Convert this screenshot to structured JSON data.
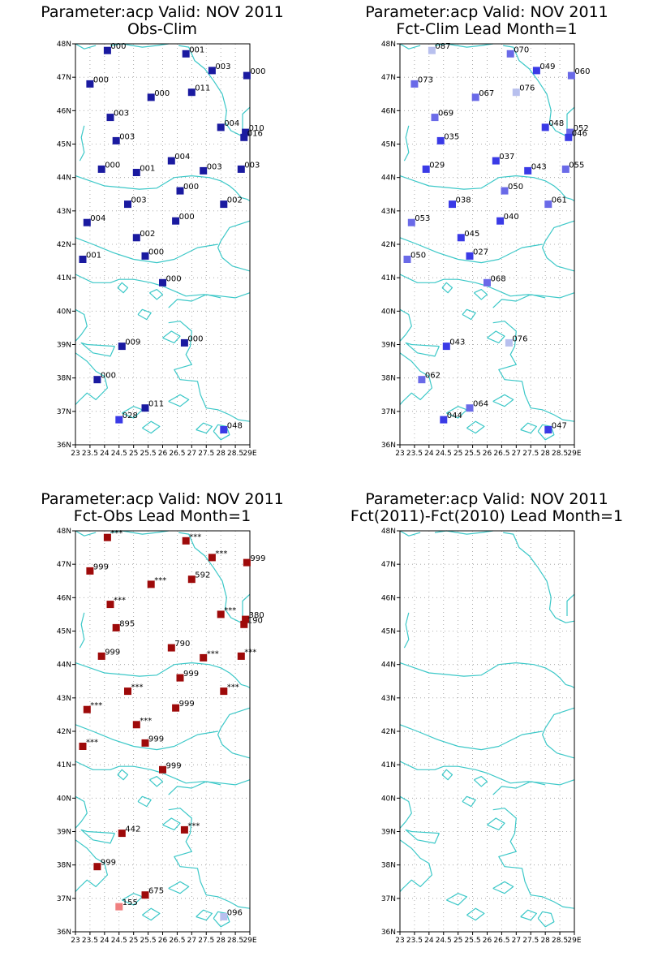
{
  "colors": {
    "coastline": "#3cc8c8",
    "grid": "#9a9a9a",
    "frame": "#000000"
  },
  "x_tick_labels": [
    "23",
    "23.5",
    "24",
    "24.5",
    "25",
    "25.5",
    "26",
    "26.5",
    "27",
    "27.5",
    "28",
    "28.5",
    "29E"
  ],
  "y_tick_labels": [
    "36N",
    "37N",
    "38N",
    "39N",
    "40N",
    "41N",
    "42N",
    "43N",
    "44N",
    "45N",
    "46N",
    "47N",
    "48N"
  ],
  "panels": [
    {
      "title_line1": "Parameter:acp Valid: NOV 2011",
      "title_line2": "Obs-Clim",
      "stations": [
        {
          "lon": 24.1,
          "lat": 47.8,
          "label": "000",
          "color": "#1a1aa0"
        },
        {
          "lon": 26.8,
          "lat": 47.7,
          "label": "001",
          "color": "#1a1aa0"
        },
        {
          "lon": 27.7,
          "lat": 47.2,
          "label": "003",
          "color": "#1a1aa0"
        },
        {
          "lon": 28.9,
          "lat": 47.05,
          "label": "000",
          "color": "#1a1aa0"
        },
        {
          "lon": 23.5,
          "lat": 46.8,
          "label": "000",
          "color": "#1a1aa0"
        },
        {
          "lon": 25.6,
          "lat": 46.4,
          "label": "000",
          "color": "#1a1aa0"
        },
        {
          "lon": 27.0,
          "lat": 46.55,
          "label": "011",
          "color": "#1a1aa0"
        },
        {
          "lon": 24.2,
          "lat": 45.8,
          "label": "003",
          "color": "#1a1aa0"
        },
        {
          "lon": 28.0,
          "lat": 45.5,
          "label": "004",
          "color": "#1a1aa0"
        },
        {
          "lon": 28.85,
          "lat": 45.35,
          "label": "010",
          "color": "#1a1aa0"
        },
        {
          "lon": 28.8,
          "lat": 45.2,
          "label": "016",
          "color": "#1a1aa0"
        },
        {
          "lon": 24.4,
          "lat": 45.1,
          "label": "003",
          "color": "#1a1aa0"
        },
        {
          "lon": 26.3,
          "lat": 44.5,
          "label": "004",
          "color": "#1a1aa0"
        },
        {
          "lon": 23.9,
          "lat": 44.25,
          "label": "000",
          "color": "#1a1aa0"
        },
        {
          "lon": 25.1,
          "lat": 44.15,
          "label": "001",
          "color": "#1a1aa0"
        },
        {
          "lon": 27.4,
          "lat": 44.2,
          "label": "003",
          "color": "#1a1aa0"
        },
        {
          "lon": 28.7,
          "lat": 44.25,
          "label": "003",
          "color": "#1a1aa0"
        },
        {
          "lon": 26.6,
          "lat": 43.6,
          "label": "000",
          "color": "#1a1aa0"
        },
        {
          "lon": 24.8,
          "lat": 43.2,
          "label": "003",
          "color": "#1a1aa0"
        },
        {
          "lon": 28.1,
          "lat": 43.2,
          "label": "002",
          "color": "#1a1aa0"
        },
        {
          "lon": 23.4,
          "lat": 42.65,
          "label": "004",
          "color": "#1a1aa0"
        },
        {
          "lon": 26.45,
          "lat": 42.7,
          "label": "000",
          "color": "#1a1aa0"
        },
        {
          "lon": 25.1,
          "lat": 42.2,
          "label": "002",
          "color": "#1a1aa0"
        },
        {
          "lon": 25.4,
          "lat": 41.65,
          "label": "000",
          "color": "#1a1aa0"
        },
        {
          "lon": 23.25,
          "lat": 41.55,
          "label": "001",
          "color": "#1a1aa0"
        },
        {
          "lon": 26.0,
          "lat": 40.85,
          "label": "000",
          "color": "#1a1aa0"
        },
        {
          "lon": 26.75,
          "lat": 39.05,
          "label": "000",
          "color": "#1a1aa0"
        },
        {
          "lon": 24.6,
          "lat": 38.95,
          "label": "009",
          "color": "#1a1aa0"
        },
        {
          "lon": 23.75,
          "lat": 37.95,
          "label": "000",
          "color": "#1a1aa0"
        },
        {
          "lon": 25.4,
          "lat": 37.1,
          "label": "011",
          "color": "#1a1aa0"
        },
        {
          "lon": 24.5,
          "lat": 36.75,
          "label": "028",
          "color": "#3a3ae6"
        },
        {
          "lon": 28.1,
          "lat": 36.45,
          "label": "048",
          "color": "#3a3ae6"
        }
      ]
    },
    {
      "title_line1": "Parameter:acp Valid: NOV 2011",
      "title_line2": "Fct-Clim Lead Month=1",
      "stations": [
        {
          "lon": 24.1,
          "lat": 47.8,
          "label": "087",
          "color": "#b8c0ee"
        },
        {
          "lon": 26.8,
          "lat": 47.7,
          "label": "070",
          "color": "#6a6ae8"
        },
        {
          "lon": 27.7,
          "lat": 47.2,
          "label": "049",
          "color": "#3a3ae6"
        },
        {
          "lon": 28.9,
          "lat": 47.05,
          "label": "060",
          "color": "#6a6ae8"
        },
        {
          "lon": 23.5,
          "lat": 46.8,
          "label": "073",
          "color": "#6a6ae8"
        },
        {
          "lon": 25.6,
          "lat": 46.4,
          "label": "067",
          "color": "#6a6ae8"
        },
        {
          "lon": 27.0,
          "lat": 46.55,
          "label": "076",
          "color": "#b8c0ee"
        },
        {
          "lon": 24.2,
          "lat": 45.8,
          "label": "069",
          "color": "#6a6ae8"
        },
        {
          "lon": 28.0,
          "lat": 45.5,
          "label": "048",
          "color": "#3a3ae6"
        },
        {
          "lon": 28.85,
          "lat": 45.35,
          "label": "052",
          "color": "#6a6ae8"
        },
        {
          "lon": 28.8,
          "lat": 45.2,
          "label": "046",
          "color": "#3a3ae6"
        },
        {
          "lon": 24.4,
          "lat": 45.1,
          "label": "035",
          "color": "#3a3ae6"
        },
        {
          "lon": 26.3,
          "lat": 44.5,
          "label": "037",
          "color": "#3a3ae6"
        },
        {
          "lon": 23.9,
          "lat": 44.25,
          "label": "029",
          "color": "#3a3ae6"
        },
        {
          "lon": 27.4,
          "lat": 44.2,
          "label": "043",
          "color": "#3a3ae6"
        },
        {
          "lon": 28.7,
          "lat": 44.25,
          "label": "055",
          "color": "#6a6ae8"
        },
        {
          "lon": 26.6,
          "lat": 43.6,
          "label": "050",
          "color": "#6a6ae8"
        },
        {
          "lon": 24.8,
          "lat": 43.2,
          "label": "038",
          "color": "#3a3ae6"
        },
        {
          "lon": 28.1,
          "lat": 43.2,
          "label": "061",
          "color": "#6a6ae8"
        },
        {
          "lon": 23.4,
          "lat": 42.65,
          "label": "053",
          "color": "#6a6ae8"
        },
        {
          "lon": 26.45,
          "lat": 42.7,
          "label": "040",
          "color": "#3a3ae6"
        },
        {
          "lon": 25.1,
          "lat": 42.2,
          "label": "045",
          "color": "#3a3ae6"
        },
        {
          "lon": 25.4,
          "lat": 41.65,
          "label": "027",
          "color": "#3a3ae6"
        },
        {
          "lon": 23.25,
          "lat": 41.55,
          "label": "050",
          "color": "#6a6ae8"
        },
        {
          "lon": 26.0,
          "lat": 40.85,
          "label": "068",
          "color": "#6a6ae8"
        },
        {
          "lon": 26.75,
          "lat": 39.05,
          "label": "076",
          "color": "#b8c0ee"
        },
        {
          "lon": 24.6,
          "lat": 38.95,
          "label": "043",
          "color": "#3a3ae6"
        },
        {
          "lon": 23.75,
          "lat": 37.95,
          "label": "062",
          "color": "#6a6ae8"
        },
        {
          "lon": 25.4,
          "lat": 37.1,
          "label": "064",
          "color": "#6a6ae8"
        },
        {
          "lon": 24.5,
          "lat": 36.75,
          "label": "044",
          "color": "#3a3ae6"
        },
        {
          "lon": 28.1,
          "lat": 36.45,
          "label": "047",
          "color": "#3a3ae6"
        }
      ]
    },
    {
      "title_line1": "Parameter:acp Valid: NOV 2011",
      "title_line2": "Fct-Obs Lead Month=1",
      "stations": [
        {
          "lon": 24.1,
          "lat": 47.8,
          "label": "***",
          "color": "#9e0a0a"
        },
        {
          "lon": 26.8,
          "lat": 47.7,
          "label": "***",
          "color": "#9e0a0a"
        },
        {
          "lon": 27.7,
          "lat": 47.2,
          "label": "***",
          "color": "#9e0a0a"
        },
        {
          "lon": 28.9,
          "lat": 47.05,
          "label": "999",
          "color": "#9e0a0a"
        },
        {
          "lon": 23.5,
          "lat": 46.8,
          "label": "999",
          "color": "#9e0a0a"
        },
        {
          "lon": 25.6,
          "lat": 46.4,
          "label": "***",
          "color": "#9e0a0a"
        },
        {
          "lon": 27.0,
          "lat": 46.55,
          "label": "592",
          "color": "#9e0a0a"
        },
        {
          "lon": 24.2,
          "lat": 45.8,
          "label": "***",
          "color": "#9e0a0a"
        },
        {
          "lon": 28.0,
          "lat": 45.5,
          "label": "***",
          "color": "#9e0a0a"
        },
        {
          "lon": 28.85,
          "lat": 45.35,
          "label": "380",
          "color": "#9e0a0a"
        },
        {
          "lon": 28.8,
          "lat": 45.2,
          "label": "190",
          "color": "#9e0a0a"
        },
        {
          "lon": 24.4,
          "lat": 45.1,
          "label": "895",
          "color": "#9e0a0a"
        },
        {
          "lon": 26.3,
          "lat": 44.5,
          "label": "790",
          "color": "#9e0a0a"
        },
        {
          "lon": 23.9,
          "lat": 44.25,
          "label": "999",
          "color": "#9e0a0a"
        },
        {
          "lon": 27.4,
          "lat": 44.2,
          "label": "***",
          "color": "#9e0a0a"
        },
        {
          "lon": 28.7,
          "lat": 44.25,
          "label": "***",
          "color": "#9e0a0a"
        },
        {
          "lon": 26.6,
          "lat": 43.6,
          "label": "999",
          "color": "#9e0a0a"
        },
        {
          "lon": 24.8,
          "lat": 43.2,
          "label": "***",
          "color": "#9e0a0a"
        },
        {
          "lon": 28.1,
          "lat": 43.2,
          "label": "***",
          "color": "#9e0a0a"
        },
        {
          "lon": 23.4,
          "lat": 42.65,
          "label": "***",
          "color": "#9e0a0a"
        },
        {
          "lon": 26.45,
          "lat": 42.7,
          "label": "999",
          "color": "#9e0a0a"
        },
        {
          "lon": 25.1,
          "lat": 42.2,
          "label": "***",
          "color": "#9e0a0a"
        },
        {
          "lon": 25.4,
          "lat": 41.65,
          "label": "999",
          "color": "#9e0a0a"
        },
        {
          "lon": 23.25,
          "lat": 41.55,
          "label": "***",
          "color": "#9e0a0a"
        },
        {
          "lon": 26.0,
          "lat": 40.85,
          "label": "999",
          "color": "#9e0a0a"
        },
        {
          "lon": 26.75,
          "lat": 39.05,
          "label": "***",
          "color": "#9e0a0a"
        },
        {
          "lon": 24.6,
          "lat": 38.95,
          "label": "442",
          "color": "#9e0a0a"
        },
        {
          "lon": 23.75,
          "lat": 37.95,
          "label": "999",
          "color": "#9e0a0a"
        },
        {
          "lon": 25.4,
          "lat": 37.1,
          "label": "675",
          "color": "#9e0a0a"
        },
        {
          "lon": 24.5,
          "lat": 36.75,
          "label": "155",
          "color": "#f08080"
        },
        {
          "lon": 28.1,
          "lat": 36.45,
          "label": "096",
          "color": "#b8c0ee"
        }
      ]
    },
    {
      "title_line1": "Parameter:acp Valid: NOV 2011",
      "title_line2": "Fct(2011)-Fct(2010) Lead Month=1",
      "stations": []
    }
  ]
}
